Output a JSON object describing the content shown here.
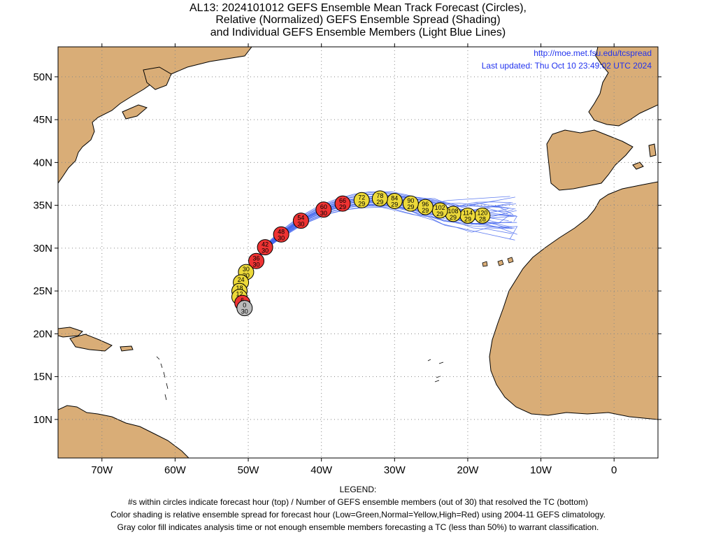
{
  "title": {
    "line1": "AL13: 2024101012 GEFS Ensemble Mean Track Forecast (Circles),",
    "line2": "Relative (Normalized) GEFS Ensemble Spread (Shading)",
    "line3": "and Individual GEFS Ensemble Members (Light Blue Lines)"
  },
  "credit": {
    "url": "http://moe.met.fsu.edu/tcspread",
    "updated": "Last updated: Thu Oct 10 23:49:02 UTC 2024"
  },
  "axes": {
    "lat_labels": [
      "50N",
      "45N",
      "40N",
      "35N",
      "30N",
      "25N",
      "20N",
      "15N",
      "10N"
    ],
    "lon_labels": [
      "70W",
      "60W",
      "50W",
      "40W",
      "30W",
      "20W",
      "10W",
      "0"
    ],
    "lat_values": [
      50,
      45,
      40,
      35,
      30,
      25,
      20,
      15,
      10
    ],
    "lon_values": [
      -70,
      -60,
      -50,
      -40,
      -30,
      -20,
      -10,
      0
    ],
    "lon_range": [
      -76,
      6
    ],
    "lat_range": [
      5.5,
      53.5
    ]
  },
  "colors": {
    "land": "#d9ad77",
    "ocean": "#ffffff",
    "member_track": "#4466ee",
    "spread_high": "#ee3333",
    "spread_normal": "#ecd93a",
    "analysis_gray": "#bbbbbb"
  },
  "track": [
    {
      "hour": "0",
      "count": "30",
      "lon": -50.5,
      "lat": 23.0,
      "cls": "gray"
    },
    {
      "hour": "6",
      "count": "30",
      "lon": -50.8,
      "lat": 23.6,
      "cls": "red"
    },
    {
      "hour": "12",
      "count": "30",
      "lon": -51.2,
      "lat": 24.3,
      "cls": "yellow"
    },
    {
      "hour": "18",
      "count": "30",
      "lon": -51.2,
      "lat": 25.0,
      "cls": "yellow"
    },
    {
      "hour": "24",
      "count": "30",
      "lon": -51.0,
      "lat": 26.0,
      "cls": "yellow"
    },
    {
      "hour": "30",
      "count": "30",
      "lon": -50.3,
      "lat": 27.2,
      "cls": "yellow"
    },
    {
      "hour": "36",
      "count": "30",
      "lon": -48.9,
      "lat": 28.5,
      "cls": "red"
    },
    {
      "hour": "42",
      "count": "30",
      "lon": -47.7,
      "lat": 30.1,
      "cls": "red"
    },
    {
      "hour": "48",
      "count": "30",
      "lon": -45.5,
      "lat": 31.6,
      "cls": "red"
    },
    {
      "hour": "54",
      "count": "30",
      "lon": -42.8,
      "lat": 33.2,
      "cls": "red"
    },
    {
      "hour": "60",
      "count": "30",
      "lon": -39.7,
      "lat": 34.5,
      "cls": "red"
    },
    {
      "hour": "66",
      "count": "29",
      "lon": -37.1,
      "lat": 35.2,
      "cls": "red"
    },
    {
      "hour": "72",
      "count": "29",
      "lon": -34.5,
      "lat": 35.6,
      "cls": "yellow"
    },
    {
      "hour": "78",
      "count": "29",
      "lon": -32.0,
      "lat": 35.8,
      "cls": "yellow"
    },
    {
      "hour": "84",
      "count": "29",
      "lon": -30.0,
      "lat": 35.5,
      "cls": "yellow"
    },
    {
      "hour": "90",
      "count": "29",
      "lon": -27.8,
      "lat": 35.2,
      "cls": "yellow"
    },
    {
      "hour": "96",
      "count": "29",
      "lon": -25.8,
      "lat": 34.8,
      "cls": "yellow"
    },
    {
      "hour": "102",
      "count": "29",
      "lon": -23.8,
      "lat": 34.4,
      "cls": "yellow"
    },
    {
      "hour": "108",
      "count": "29",
      "lon": -22.0,
      "lat": 34.0,
      "cls": "yellow"
    },
    {
      "hour": "114",
      "count": "29",
      "lon": -20.0,
      "lat": 33.8,
      "cls": "yellow"
    },
    {
      "hour": "120",
      "count": "28",
      "lon": -18.0,
      "lat": 33.8,
      "cls": "yellow"
    }
  ],
  "legend": {
    "line0": "LEGEND:",
    "line1": "#s within circles indicate forecast hour (top) / Number of GEFS ensemble members (out of 30) that resolved the TC (bottom)",
    "line2": "Color shading is relative ensemble spread for forecast hour (Low=Green,Normal=Yellow,High=Red) using 2004-11 GEFS climatology.",
    "line3": "Gray color fill indicates analysis time or not enough ensemble members forecasting a TC (less than 50%) to warrant classification."
  }
}
